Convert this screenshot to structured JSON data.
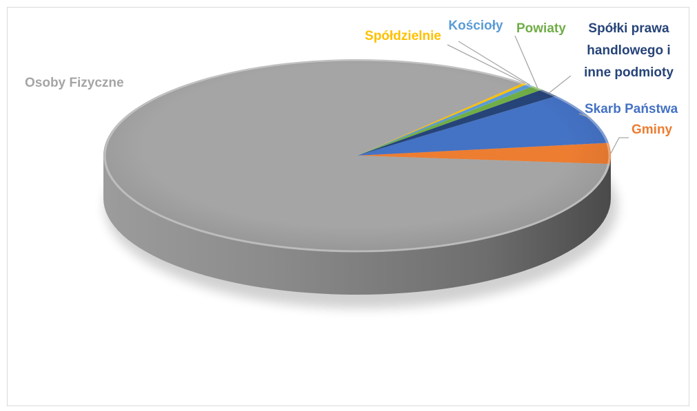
{
  "chart_data": {
    "type": "pie",
    "title": "",
    "labels": [
      "Gminy",
      "Skarb Państwa",
      "Spółki prawa handlowego i inne podmioty",
      "Powiaty",
      "Kościoły",
      "Spółdzielnie",
      "Osoby Fizyczne"
    ],
    "label_lines": [
      [
        "Gminy"
      ],
      [
        "Skarb Państwa"
      ],
      [
        "Spółki prawa",
        "handlowego i",
        "inne podmioty"
      ],
      [
        "Powiaty"
      ],
      [
        "Kościoły"
      ],
      [
        "Spółdzielnie"
      ],
      [
        "Osoby Fizyczne"
      ]
    ],
    "values": [
      3.5,
      8.5,
      1.4,
      0.8,
      0.5,
      0.3,
      85.0
    ],
    "unit": "%",
    "colors": [
      "#ED7D31",
      "#4472C4",
      "#264478",
      "#70AD47",
      "#5B9BD5",
      "#FFC000",
      "#A5A5A5"
    ],
    "label_colors": [
      "#ED7D31",
      "#4472C4",
      "#264478",
      "#70AD47",
      "#5B9BD5",
      "#FFC000",
      "#A5A5A5"
    ],
    "style": "3d-pie",
    "legend": "none"
  }
}
